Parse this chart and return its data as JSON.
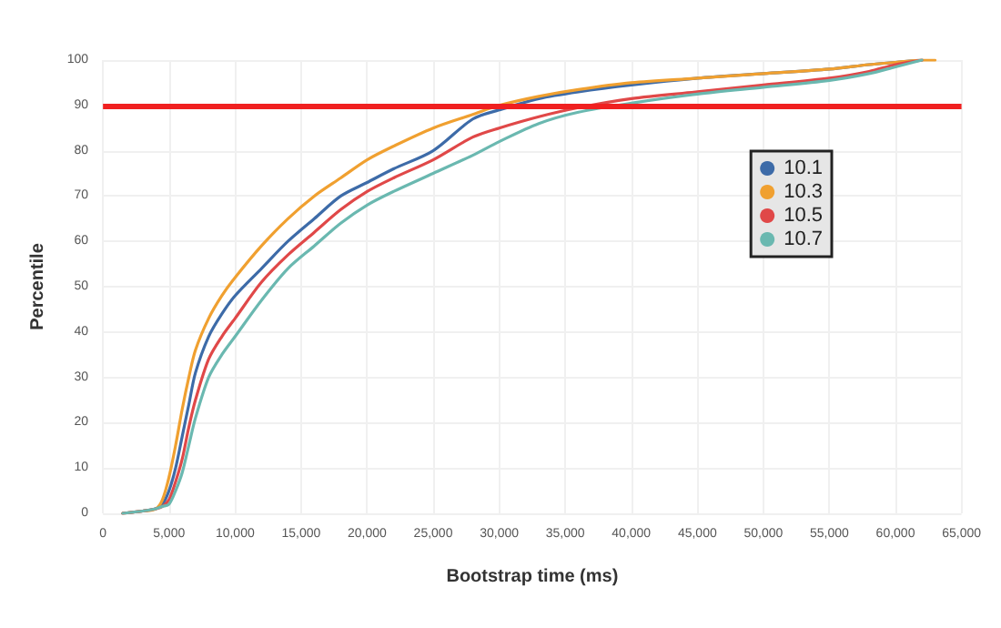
{
  "chart_data": {
    "type": "line",
    "xlabel": "Bootstrap time (ms)",
    "ylabel": "Percentile",
    "x": [
      1500,
      3000,
      4000,
      4500,
      5000,
      5500,
      6000,
      6500,
      7000,
      8000,
      9000,
      10000,
      12000,
      14000,
      16000,
      18000,
      20000,
      22000,
      25000,
      28000,
      30000,
      33000,
      36000,
      40000,
      45000,
      50000,
      55000,
      58000,
      60000,
      62000,
      63000
    ],
    "series": [
      {
        "name": "10.1",
        "color": "#3d6ba8",
        "values": [
          0,
          0.5,
          1,
          2,
          5,
          10,
          17,
          24,
          31,
          39,
          44,
          48,
          54,
          60,
          65,
          70,
          73,
          76,
          80,
          87,
          89,
          91.5,
          93,
          94.5,
          96,
          97,
          98,
          99,
          99.5,
          100,
          null
        ]
      },
      {
        "name": "10.3",
        "color": "#f0a030",
        "values": [
          0,
          0.5,
          1,
          3,
          8,
          15,
          23,
          30,
          36,
          43,
          48,
          52,
          59,
          65,
          70,
          74,
          78,
          81,
          85,
          88,
          90,
          92,
          93.5,
          95,
          96,
          97,
          98,
          99,
          99.5,
          100,
          100
        ]
      },
      {
        "name": "10.5",
        "color": "#e04848",
        "values": [
          0,
          0.5,
          1,
          1.5,
          3,
          7,
          12,
          19,
          25,
          34,
          39,
          43,
          51,
          57,
          62,
          67,
          71,
          74,
          78,
          83,
          85,
          87.5,
          89.5,
          91.5,
          93,
          94.5,
          96,
          97.5,
          99,
          100,
          null
        ]
      },
      {
        "name": "10.7",
        "color": "#6ab8b0",
        "values": [
          0,
          0.5,
          1,
          1.5,
          2,
          5,
          9,
          15,
          21,
          30,
          35,
          39,
          47,
          54,
          59,
          64,
          68,
          71,
          75,
          79,
          82,
          86,
          88.5,
          90.5,
          92.5,
          94,
          95.5,
          97,
          98.5,
          100,
          null
        ]
      }
    ],
    "xlim": [
      0,
      65000
    ],
    "xticks": [
      0,
      {
        "value": 5000,
        "label": "5,000"
      },
      {
        "value": 10000,
        "label": "10,000"
      },
      {
        "value": 15000,
        "label": "15,000"
      },
      {
        "value": 20000,
        "label": "20,000"
      },
      {
        "value": 25000,
        "label": "25,000"
      },
      {
        "value": 30000,
        "label": "30,000"
      },
      {
        "value": 35000,
        "label": "35,000"
      },
      {
        "value": 40000,
        "label": "40,000"
      },
      {
        "value": 45000,
        "label": "45,000"
      },
      {
        "value": 50000,
        "label": "50,000"
      },
      {
        "value": 55000,
        "label": "55,000"
      },
      {
        "value": 60000,
        "label": "60,000"
      },
      {
        "value": 65000,
        "label": "65,000"
      }
    ],
    "ylim": [
      0,
      100
    ],
    "yticks": [
      0,
      10,
      20,
      30,
      40,
      50,
      60,
      70,
      80,
      90,
      100
    ],
    "ref_lines": [
      {
        "axis": "y",
        "value": 90,
        "color": "#f02020"
      }
    ],
    "grid": true,
    "legend": "right",
    "marker": "none",
    "line_style": "solid"
  }
}
